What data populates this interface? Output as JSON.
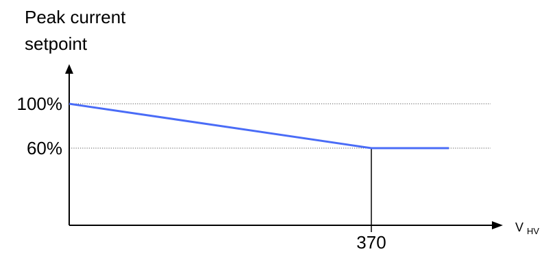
{
  "chart_data": {
    "type": "line",
    "title": "",
    "ylabel_lines": [
      "Peak current",
      "setpoint"
    ],
    "xlabel": {
      "main": "V",
      "subscript": "HV"
    },
    "y_ticks": [
      {
        "value": 100,
        "label": "100%"
      },
      {
        "value": 60,
        "label": "60%"
      }
    ],
    "x_ticks": [
      {
        "value": 370,
        "label": "370"
      }
    ],
    "series": [
      {
        "points": [
          {
            "x": 0,
            "y": 100
          },
          {
            "x": 370,
            "y": 60
          },
          {
            "x": 465,
            "y": 60
          }
        ]
      }
    ],
    "xlim": [
      0,
      500
    ],
    "ylim": [
      0,
      120
    ],
    "grid": "dotted reference lines at 100% and 60%",
    "colors": {
      "series": "#4a6cf7",
      "axis": "#000000",
      "guide": "#555555"
    }
  }
}
